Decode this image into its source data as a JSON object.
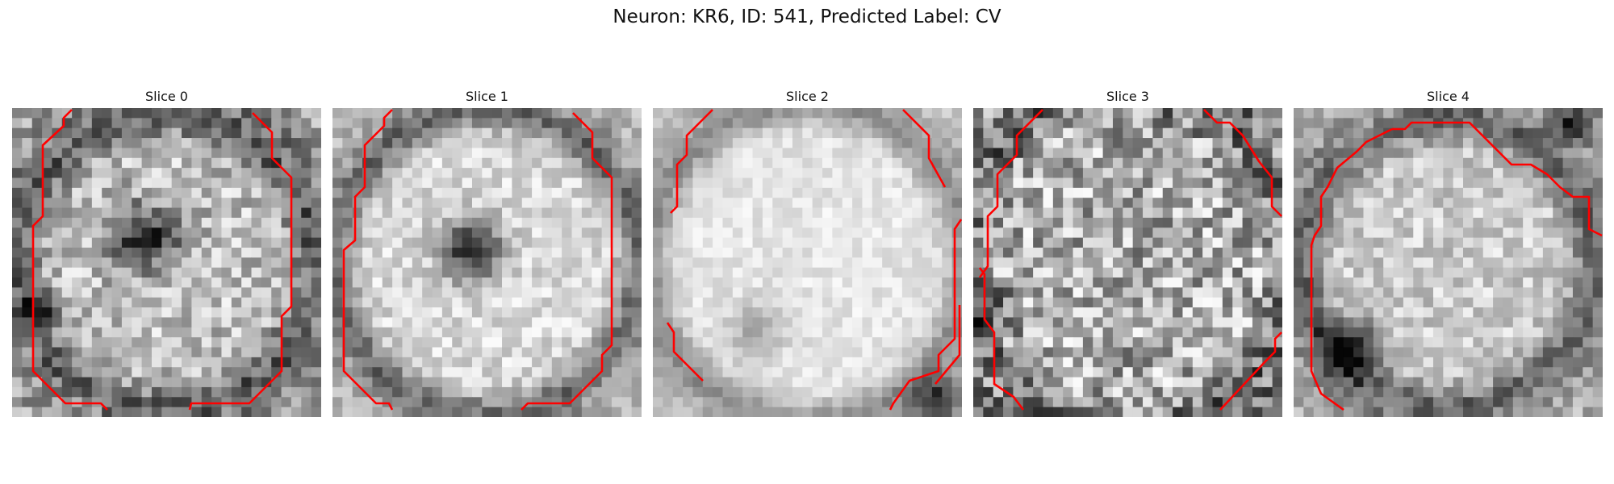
{
  "figure": {
    "title": "Neuron: KR6, ID: 541, Predicted Label: CV"
  },
  "colors": {
    "contour": "#ff0000",
    "background": "#ffffff"
  },
  "panels": [
    {
      "title": "Slice 0"
    },
    {
      "title": "Slice 1"
    },
    {
      "title": "Slice 2"
    },
    {
      "title": "Slice 3"
    },
    {
      "title": "Slice 4"
    }
  ]
}
